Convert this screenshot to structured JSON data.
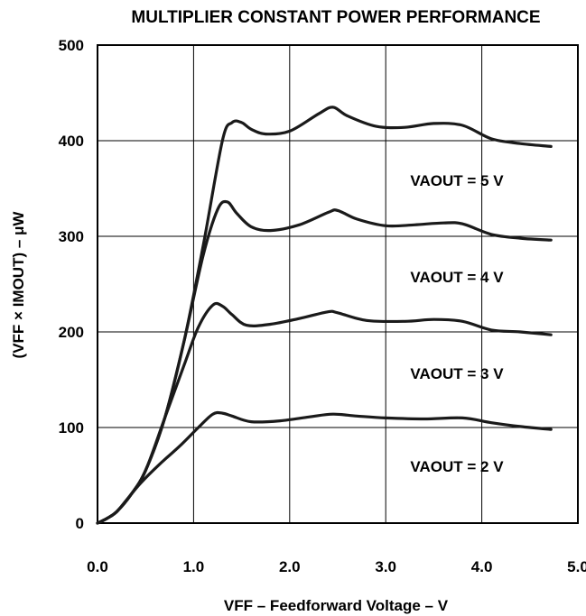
{
  "chart_data": {
    "type": "line",
    "title": "MULTIPLIER CONSTANT POWER PERFORMANCE",
    "xlabel": "VFF – Feedforward Voltage – V",
    "ylabel": "(VFF × IMOUT) – μW",
    "xlim": [
      0,
      5
    ],
    "ylim": [
      0,
      500
    ],
    "xticks": [
      "0.0",
      "1.0",
      "2.0",
      "3.0",
      "4.0",
      "5.0"
    ],
    "yticks": [
      "0",
      "100",
      "200",
      "300",
      "400",
      "500"
    ],
    "grid": true,
    "series": [
      {
        "name": "VAOUT = 5 V",
        "x": [
          0.0,
          0.1,
          0.2,
          0.35,
          0.5,
          0.7,
          0.9,
          1.1,
          1.3,
          1.4,
          1.5,
          1.6,
          1.75,
          2.0,
          2.3,
          2.45,
          2.6,
          2.9,
          3.2,
          3.5,
          3.8,
          4.1,
          4.4,
          4.72
        ],
        "y": [
          0,
          5,
          12,
          30,
          55,
          110,
          190,
          290,
          400,
          419,
          419,
          412,
          407,
          410,
          428,
          435,
          426,
          415,
          414,
          418,
          416,
          402,
          397,
          394
        ]
      },
      {
        "name": "VAOUT = 4 V",
        "x": [
          0.0,
          0.1,
          0.2,
          0.35,
          0.5,
          0.7,
          0.9,
          1.1,
          1.25,
          1.35,
          1.45,
          1.6,
          1.8,
          2.1,
          2.4,
          2.5,
          2.7,
          3.0,
          3.3,
          3.6,
          3.8,
          4.1,
          4.4,
          4.72
        ],
        "y": [
          0,
          5,
          12,
          30,
          55,
          110,
          190,
          280,
          328,
          336,
          324,
          310,
          306,
          312,
          325,
          327,
          318,
          311,
          312,
          314,
          313,
          302,
          298,
          296
        ]
      },
      {
        "name": "VAOUT = 3 V",
        "x": [
          0.0,
          0.1,
          0.2,
          0.35,
          0.5,
          0.7,
          0.9,
          1.05,
          1.2,
          1.3,
          1.4,
          1.55,
          1.8,
          2.1,
          2.4,
          2.5,
          2.8,
          3.2,
          3.5,
          3.8,
          4.1,
          4.4,
          4.72
        ],
        "y": [
          0,
          5,
          12,
          30,
          55,
          110,
          165,
          205,
          228,
          227,
          218,
          207,
          208,
          214,
          221,
          220,
          212,
          211,
          213,
          211,
          202,
          200,
          197
        ]
      },
      {
        "name": "VAOUT = 2 V",
        "x": [
          0.0,
          0.1,
          0.2,
          0.3,
          0.45,
          0.65,
          0.85,
          1.05,
          1.2,
          1.3,
          1.4,
          1.6,
          1.9,
          2.2,
          2.45,
          2.7,
          3.0,
          3.4,
          3.8,
          4.1,
          4.4,
          4.72
        ],
        "y": [
          0,
          5,
          12,
          24,
          42,
          62,
          80,
          100,
          114,
          115,
          112,
          106,
          107,
          111,
          114,
          112,
          110,
          109,
          110,
          105,
          101,
          98
        ]
      }
    ]
  }
}
